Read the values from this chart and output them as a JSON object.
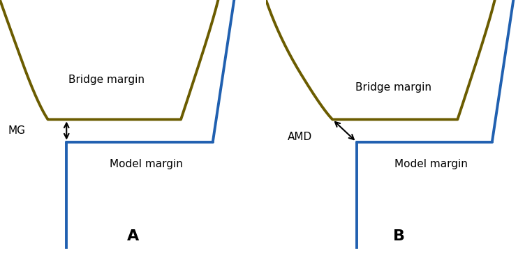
{
  "fig_width": 7.62,
  "fig_height": 3.76,
  "dpi": 100,
  "bg_color": "#ffffff",
  "olive_color": "#6b5c00",
  "blue_color": "#2060b0",
  "line_width": 2.8,
  "bridge_margin_label": "Bridge margin",
  "model_margin_label": "Model margin",
  "mg_label": "MG",
  "amd_label": "AMD",
  "panel_A_label": "A",
  "panel_B_label": "B",
  "label_fontsize": 11,
  "panel_label_fontsize": 16,
  "panel_label_fontweight": "bold"
}
